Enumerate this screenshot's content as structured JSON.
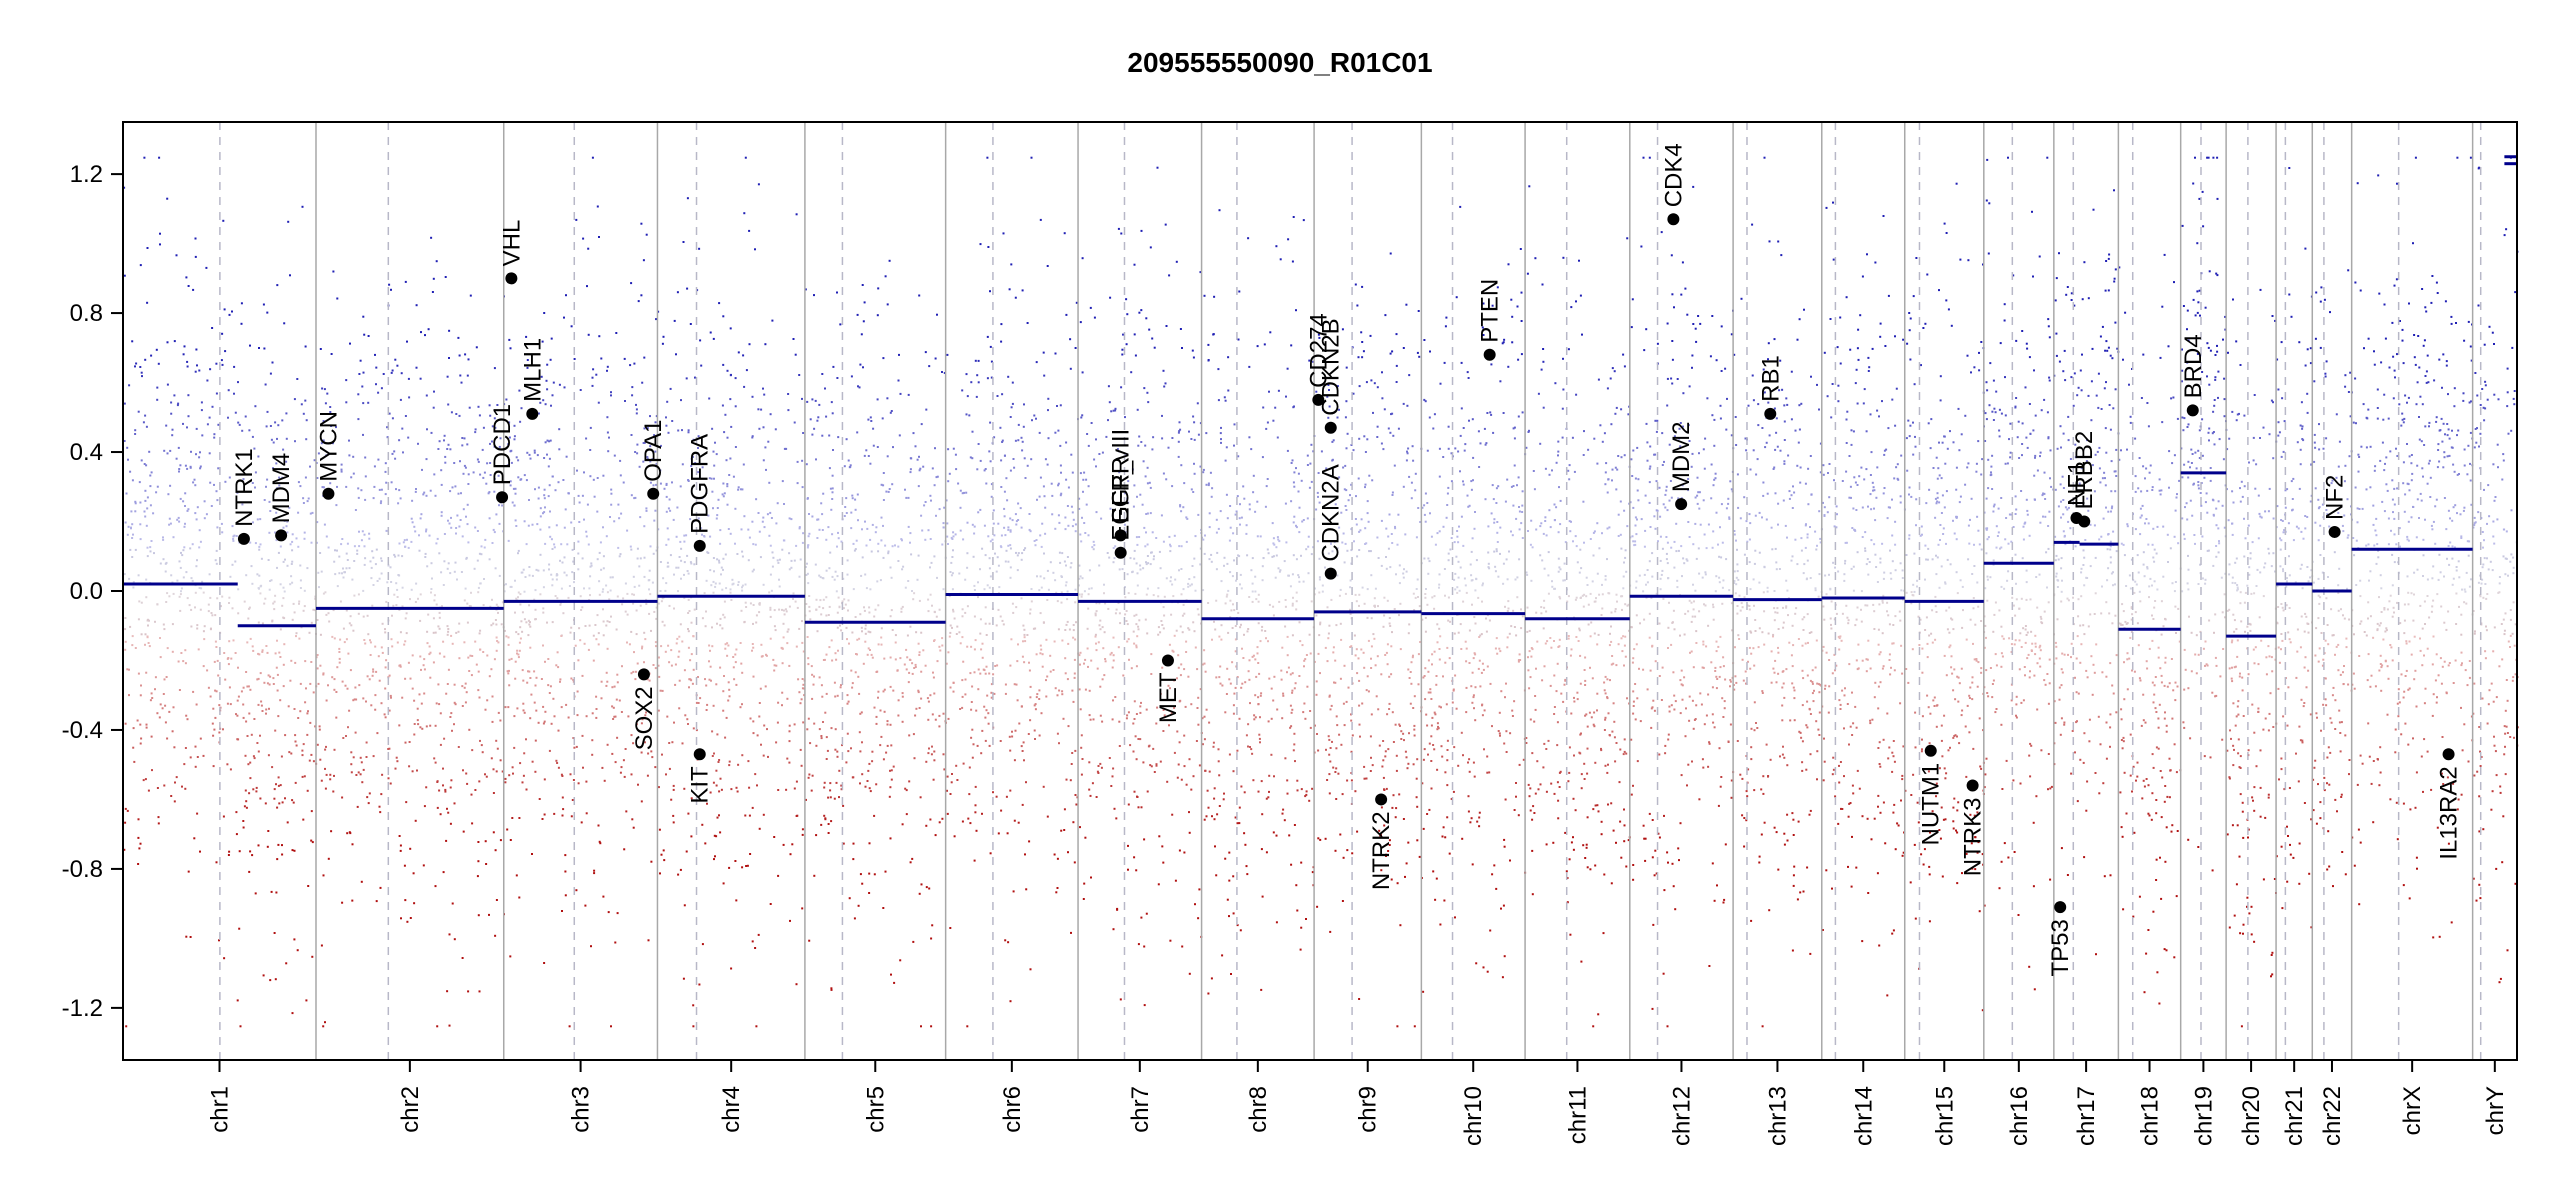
{
  "chart_data": {
    "type": "scatter",
    "title": "209555550090_R01C01",
    "xlabel": "",
    "ylabel": "",
    "ylim": [
      -1.35,
      1.35
    ],
    "y_ticks": [
      -1.2,
      -0.8,
      -0.4,
      0.0,
      0.4,
      0.8,
      1.2
    ],
    "y_tick_labels": [
      "-1.2",
      "-0.8",
      "-0.4",
      "0.0",
      "0.4",
      "0.8",
      "1.2"
    ],
    "grid": false,
    "colors": {
      "gain": "#1f1fb4",
      "loss": "#b01010",
      "segment": "#00008b",
      "marker": "#000000",
      "divider": "#a8a8a8",
      "centromere": "#b8b8c8"
    },
    "chromosomes": [
      {
        "name": "chr1",
        "start": 0.0,
        "end": 248.96,
        "centromere": 125.0
      },
      {
        "name": "chr2",
        "start": 248.96,
        "end": 491.15,
        "centromere": 93.3
      },
      {
        "name": "chr3",
        "start": 491.15,
        "end": 689.45,
        "centromere": 91.0
      },
      {
        "name": "chr4",
        "start": 689.45,
        "end": 879.67,
        "centromere": 50.4
      },
      {
        "name": "chr5",
        "start": 879.67,
        "end": 1061.21,
        "centromere": 48.4
      },
      {
        "name": "chr6",
        "start": 1061.21,
        "end": 1232.02,
        "centromere": 61.0
      },
      {
        "name": "chr7",
        "start": 1232.02,
        "end": 1391.37,
        "centromere": 59.9
      },
      {
        "name": "chr8",
        "start": 1391.37,
        "end": 1536.51,
        "centromere": 45.6
      },
      {
        "name": "chr9",
        "start": 1536.51,
        "end": 1674.9,
        "centromere": 49.0
      },
      {
        "name": "chr10",
        "start": 1674.9,
        "end": 1808.69,
        "centromere": 40.2
      },
      {
        "name": "chr11",
        "start": 1808.69,
        "end": 1943.78,
        "centromere": 53.7
      },
      {
        "name": "chr12",
        "start": 1943.78,
        "end": 2077.05,
        "centromere": 35.8
      },
      {
        "name": "chr13",
        "start": 2077.05,
        "end": 2191.42,
        "centromere": 17.9
      },
      {
        "name": "chr14",
        "start": 2191.42,
        "end": 2298.46,
        "centromere": 17.6
      },
      {
        "name": "chr15",
        "start": 2298.46,
        "end": 2400.45,
        "centromere": 19.0
      },
      {
        "name": "chr16",
        "start": 2400.45,
        "end": 2490.79,
        "centromere": 36.8
      },
      {
        "name": "chr17",
        "start": 2490.79,
        "end": 2574.05,
        "centromere": 25.1
      },
      {
        "name": "chr18",
        "start": 2574.05,
        "end": 2654.42,
        "centromere": 18.5
      },
      {
        "name": "chr19",
        "start": 2654.42,
        "end": 2713.03,
        "centromere": 26.2
      },
      {
        "name": "chr20",
        "start": 2713.03,
        "end": 2777.47,
        "centromere": 28.1
      },
      {
        "name": "chr21",
        "start": 2777.47,
        "end": 2824.18,
        "centromere": 12.0
      },
      {
        "name": "chr22",
        "start": 2824.18,
        "end": 2875.0,
        "centromere": 15.0
      },
      {
        "name": "chrX",
        "start": 2875.0,
        "end": 3031.04,
        "centromere": 60.6
      },
      {
        "name": "chrY",
        "start": 3031.04,
        "end": 3088.27,
        "centromere": 10.4
      }
    ],
    "segments": [
      {
        "chr": "chr1",
        "from": 0.0,
        "to": 148.0,
        "value": 0.02
      },
      {
        "chr": "chr1",
        "from": 148.0,
        "to": 248.96,
        "value": -0.1
      },
      {
        "chr": "chr2",
        "from": 248.96,
        "to": 491.15,
        "value": -0.05
      },
      {
        "chr": "chr3",
        "from": 491.15,
        "to": 689.45,
        "value": -0.03
      },
      {
        "chr": "chr4",
        "from": 689.45,
        "to": 879.67,
        "value": -0.015
      },
      {
        "chr": "chr5",
        "from": 879.67,
        "to": 1061.21,
        "value": -0.09
      },
      {
        "chr": "chr6",
        "from": 1061.21,
        "to": 1232.02,
        "value": -0.01
      },
      {
        "chr": "chr7",
        "from": 1232.02,
        "to": 1391.37,
        "value": -0.03
      },
      {
        "chr": "chr8",
        "from": 1391.37,
        "to": 1536.51,
        "value": -0.08
      },
      {
        "chr": "chr9",
        "from": 1536.51,
        "to": 1674.9,
        "value": -0.06
      },
      {
        "chr": "chr10",
        "from": 1674.9,
        "to": 1808.69,
        "value": -0.065
      },
      {
        "chr": "chr11",
        "from": 1808.69,
        "to": 1943.78,
        "value": -0.08
      },
      {
        "chr": "chr12",
        "from": 1943.78,
        "to": 2077.05,
        "value": -0.015
      },
      {
        "chr": "chr13",
        "from": 2077.05,
        "to": 2191.42,
        "value": -0.025
      },
      {
        "chr": "chr14",
        "from": 2191.42,
        "to": 2298.46,
        "value": -0.02
      },
      {
        "chr": "chr15",
        "from": 2298.46,
        "to": 2400.45,
        "value": -0.03
      },
      {
        "chr": "chr16",
        "from": 2400.45,
        "to": 2490.79,
        "value": 0.08
      },
      {
        "chr": "chr17",
        "from": 2490.79,
        "to": 2524.0,
        "value": 0.14
      },
      {
        "chr": "chr17",
        "from": 2524.0,
        "to": 2574.05,
        "value": 0.135
      },
      {
        "chr": "chr18",
        "from": 2574.05,
        "to": 2654.42,
        "value": -0.11
      },
      {
        "chr": "chr19",
        "from": 2654.42,
        "to": 2713.03,
        "value": 0.34
      },
      {
        "chr": "chr20",
        "from": 2713.03,
        "to": 2777.47,
        "value": -0.13
      },
      {
        "chr": "chr21",
        "from": 2777.47,
        "to": 2824.18,
        "value": 0.02
      },
      {
        "chr": "chr22",
        "from": 2824.18,
        "to": 2875.0,
        "value": 0.0
      },
      {
        "chr": "chrX",
        "from": 2875.0,
        "to": 3031.04,
        "value": 0.12
      },
      {
        "chr": "chrY",
        "from": 3072.0,
        "to": 3088.27,
        "value": 1.23
      },
      {
        "chr": "chrY",
        "from": 3072.0,
        "to": 3088.27,
        "value": 1.25
      }
    ],
    "genes": [
      {
        "name": "NTRK1",
        "x": 156.0,
        "y": 0.15
      },
      {
        "name": "MDM4",
        "x": 204.0,
        "y": 0.16
      },
      {
        "name": "MYCN",
        "x": 265.0,
        "y": 0.28
      },
      {
        "name": "PDCD1",
        "x": 489.0,
        "y": 0.27
      },
      {
        "name": "VHL",
        "x": 501.0,
        "y": 0.9
      },
      {
        "name": "MLH1",
        "x": 528.0,
        "y": 0.51
      },
      {
        "name": "SOX2",
        "x": 672.0,
        "y": -0.24
      },
      {
        "name": "OPA1",
        "x": 684.0,
        "y": 0.28
      },
      {
        "name": "PDGFRA",
        "x": 744.0,
        "y": 0.13
      },
      {
        "name": "KIT",
        "x": 744.0,
        "y": -0.47
      },
      {
        "name": "EGFR",
        "x": 1287.0,
        "y": 0.16
      },
      {
        "name": "EGFR_vIII",
        "x": 1287.0,
        "y": 0.11
      },
      {
        "name": "MET",
        "x": 1348.0,
        "y": -0.2
      },
      {
        "name": "CDKN2A",
        "x": 1558.0,
        "y": 0.05
      },
      {
        "name": "CDKN2B",
        "x": 1558.0,
        "y": 0.47
      },
      {
        "name": "CD274",
        "x": 1542.0,
        "y": 0.55
      },
      {
        "name": "NTRK2",
        "x": 1623.0,
        "y": -0.6
      },
      {
        "name": "PTEN",
        "x": 1763.0,
        "y": 0.68
      },
      {
        "name": "CDK4",
        "x": 2000.0,
        "y": 1.07
      },
      {
        "name": "MDM2",
        "x": 2010.0,
        "y": 0.25
      },
      {
        "name": "RB1",
        "x": 2125.0,
        "y": 0.51
      },
      {
        "name": "NUTM1",
        "x": 2332.0,
        "y": -0.46
      },
      {
        "name": "NTRK3",
        "x": 2386.0,
        "y": -0.56
      },
      {
        "name": "TP53",
        "x": 2499.0,
        "y": -0.91
      },
      {
        "name": "NF1",
        "x": 2520.0,
        "y": 0.21
      },
      {
        "name": "ERBB2",
        "x": 2530.0,
        "y": 0.2
      },
      {
        "name": "BRD4",
        "x": 2670.0,
        "y": 0.52
      },
      {
        "name": "NF2",
        "x": 2853.0,
        "y": 0.17
      },
      {
        "name": "IL13RA2",
        "x": 3000.0,
        "y": -0.47
      }
    ]
  }
}
